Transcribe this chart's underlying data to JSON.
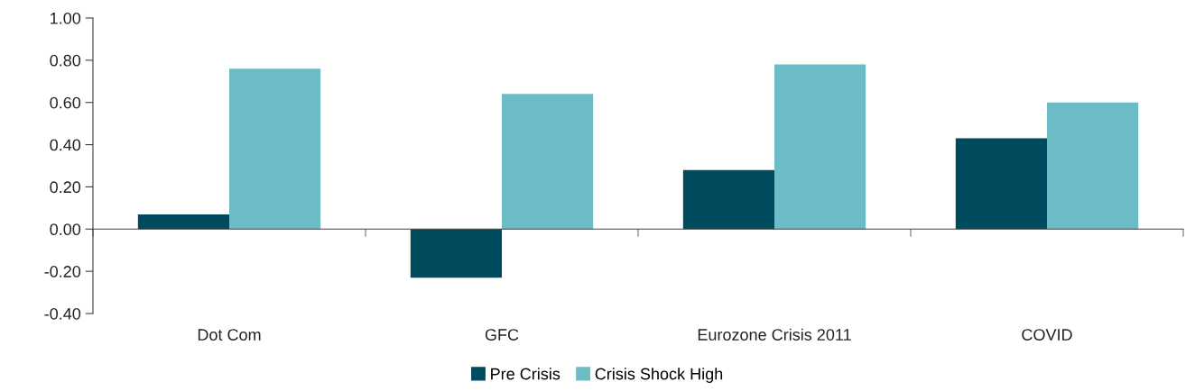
{
  "chart_data": {
    "type": "bar",
    "categories": [
      "Dot Com",
      "GFC",
      "Eurozone Crisis 2011",
      "COVID"
    ],
    "series": [
      {
        "name": "Pre Crisis",
        "color": "#004a5e",
        "values": [
          0.07,
          -0.23,
          0.28,
          0.43
        ]
      },
      {
        "name": "Crisis Shock High",
        "color": "#6bbcc6",
        "values": [
          0.76,
          0.64,
          0.78,
          0.6
        ]
      }
    ],
    "ylim": [
      -0.4,
      1.0
    ],
    "yticks": [
      {
        "value": -0.4,
        "label": "-0.40"
      },
      {
        "value": -0.2,
        "label": "-0.20"
      },
      {
        "value": 0,
        "label": "0.00"
      },
      {
        "value": 0.2,
        "label": "0.20"
      },
      {
        "value": 0.4,
        "label": "0.40"
      },
      {
        "value": 0.6,
        "label": "0.60"
      },
      {
        "value": 0.8,
        "label": "0.80"
      },
      {
        "value": 1.0,
        "label": "1.00"
      }
    ],
    "legend": "bottom"
  }
}
